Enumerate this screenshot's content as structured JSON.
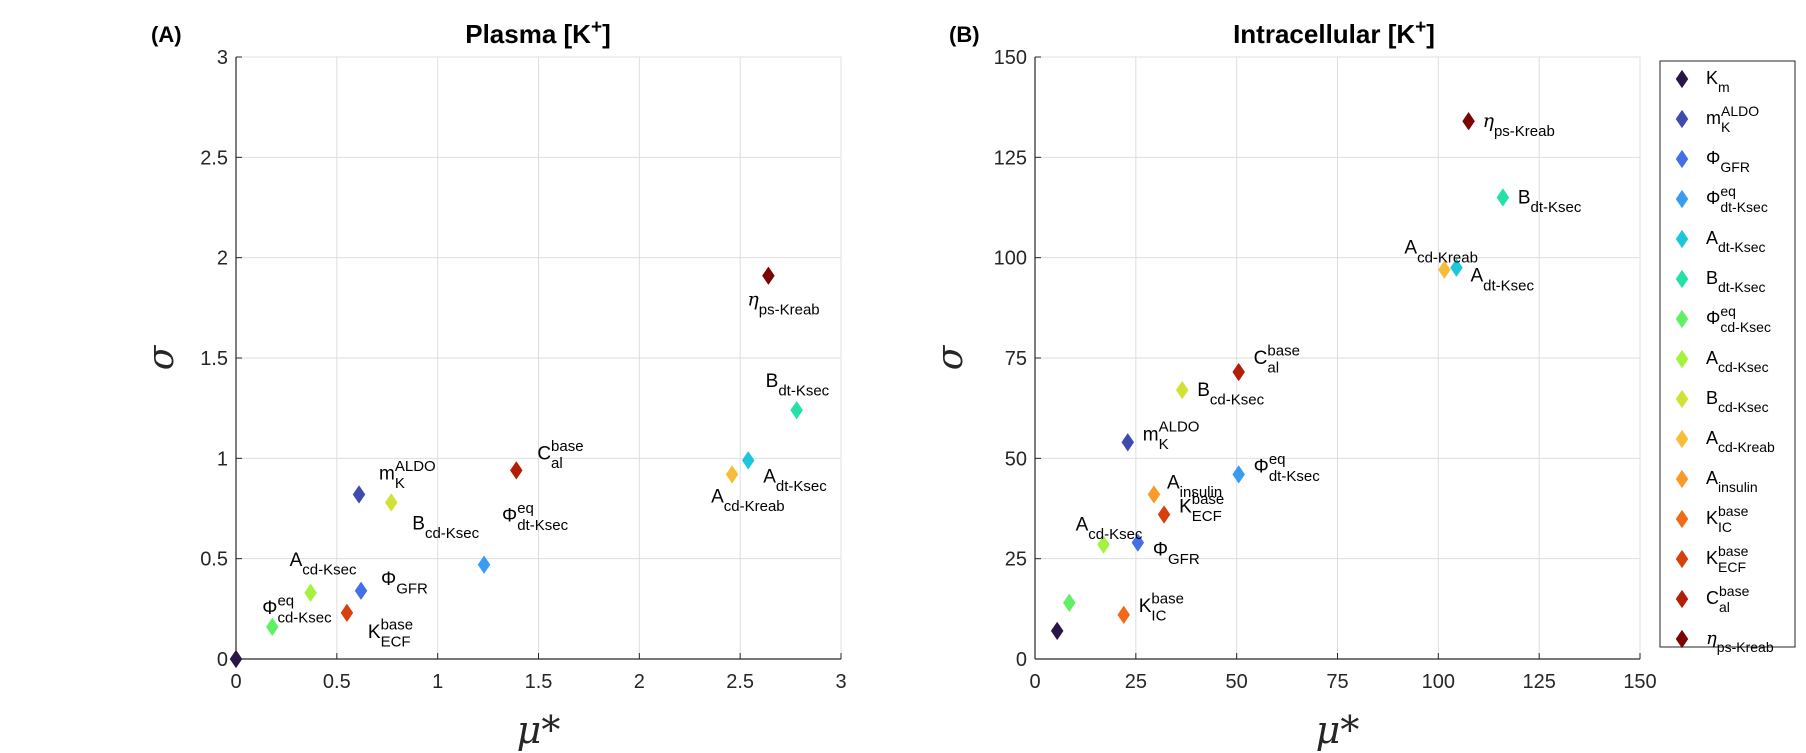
{
  "chart_data": [
    {
      "type": "scatter",
      "panel": "(A)",
      "title": "Plasma [K",
      "title_sup": "+",
      "title_end": "]",
      "xlabel": "μ*",
      "ylabel": "σ",
      "xlim": [
        0,
        3
      ],
      "ylim": [
        0,
        3
      ],
      "xticks": [
        "0",
        "0.5",
        "1",
        "1.5",
        "2",
        "2.5",
        "3"
      ],
      "yticks": [
        "0",
        "0.5",
        "1",
        "1.5",
        "2",
        "2.5",
        "3"
      ],
      "grid": true,
      "points": [
        {
          "series": 0,
          "x": 0.0,
          "y": 0.0,
          "label": ""
        },
        {
          "series": 1,
          "x": 0.61,
          "y": 0.82,
          "label": "m",
          "sub": "K",
          "sup": "ALDO"
        },
        {
          "series": 2,
          "x": 0.62,
          "y": 0.34,
          "label": "Φ",
          "sub": "GFR"
        },
        {
          "series": 3,
          "x": 1.23,
          "y": 0.47,
          "label": "Φ",
          "sub": "dt-Ksec",
          "sup": "eq"
        },
        {
          "series": 4,
          "x": 2.54,
          "y": 0.99,
          "label": "A",
          "sub": "dt-Ksec"
        },
        {
          "series": 5,
          "x": 2.78,
          "y": 1.24,
          "label": "B",
          "sub": "dt-Ksec"
        },
        {
          "series": 6,
          "x": 0.18,
          "y": 0.16,
          "label": "Φ",
          "sub": "cd-Ksec",
          "sup": "eq"
        },
        {
          "series": 7,
          "x": 0.37,
          "y": 0.33,
          "label": "A",
          "sub": "cd-Ksec"
        },
        {
          "series": 8,
          "x": 0.77,
          "y": 0.78,
          "label": "B",
          "sub": "cd-Ksec"
        },
        {
          "series": 9,
          "x": 2.46,
          "y": 0.92,
          "label": "A",
          "sub": "cd-Kreab"
        },
        {
          "series": 12,
          "x": 0.55,
          "y": 0.23,
          "label": "K",
          "sub": "ECF",
          "sup": "base"
        },
        {
          "series": 13,
          "x": 1.39,
          "y": 0.94,
          "label": "C",
          "sub": "al",
          "sup": "base"
        },
        {
          "series": 14,
          "x": 2.64,
          "y": 1.91,
          "label": "η",
          "sub": "ps-Kreab"
        }
      ]
    },
    {
      "type": "scatter",
      "panel": "(B)",
      "title": "Intracellular [K",
      "title_sup": "+",
      "title_end": "]",
      "xlabel": "μ*",
      "ylabel": "σ",
      "xlim": [
        0,
        150
      ],
      "ylim": [
        0,
        150
      ],
      "xticks": [
        "0",
        "25",
        "50",
        "75",
        "100",
        "125",
        "150"
      ],
      "yticks": [
        "0",
        "25",
        "50",
        "75",
        "100",
        "125",
        "150"
      ],
      "grid": true,
      "points": [
        {
          "series": 0,
          "x": 5.5,
          "y": 7,
          "label": ""
        },
        {
          "series": 1,
          "x": 23,
          "y": 54,
          "label": "m",
          "sub": "K",
          "sup": "ALDO"
        },
        {
          "series": 2,
          "x": 25.5,
          "y": 29,
          "label": "Φ",
          "sub": "GFR"
        },
        {
          "series": 3,
          "x": 50.5,
          "y": 46,
          "label": "Φ",
          "sub": "dt-Ksec",
          "sup": "eq"
        },
        {
          "series": 4,
          "x": 104.5,
          "y": 97.5,
          "label": "A",
          "sub": "dt-Ksec"
        },
        {
          "series": 5,
          "x": 116,
          "y": 115,
          "label": "B",
          "sub": "dt-Ksec"
        },
        {
          "series": 6,
          "x": 8.5,
          "y": 14,
          "label": ""
        },
        {
          "series": 7,
          "x": 17,
          "y": 28.5,
          "label": "A",
          "sub": "cd-Ksec"
        },
        {
          "series": 8,
          "x": 36.5,
          "y": 67,
          "label": "B",
          "sub": "cd-Ksec"
        },
        {
          "series": 9,
          "x": 101.5,
          "y": 97,
          "label": "A",
          "sub": "cd-Kreab"
        },
        {
          "series": 10,
          "x": 29.5,
          "y": 41,
          "label": "A",
          "sub": "insulin"
        },
        {
          "series": 11,
          "x": 22,
          "y": 11,
          "label": "K",
          "sub": "IC",
          "sup": "base"
        },
        {
          "series": 12,
          "x": 32,
          "y": 36,
          "label": "K",
          "sub": "ECF",
          "sup": "base"
        },
        {
          "series": 13,
          "x": 50.5,
          "y": 71.5,
          "label": "C",
          "sub": "al",
          "sup": "base"
        },
        {
          "series": 14,
          "x": 107.5,
          "y": 134,
          "label": "η",
          "sub": "ps-Kreab"
        }
      ]
    }
  ],
  "legend": {
    "placement": "right",
    "entries": [
      {
        "base": "K",
        "sub": "m",
        "sup": "",
        "color": "#2a1548"
      },
      {
        "base": "m",
        "sub": "K",
        "sup": "ALDO",
        "color": "#3e4aad"
      },
      {
        "base": "Φ",
        "sub": "GFR",
        "sup": "",
        "color": "#4370e6"
      },
      {
        "base": "Φ",
        "sub": "dt-Ksec",
        "sup": "eq",
        "color": "#3a9cf0"
      },
      {
        "base": "A",
        "sub": "dt-Ksec",
        "sup": "",
        "color": "#1ec6dc"
      },
      {
        "base": "B",
        "sub": "dt-Ksec",
        "sup": "",
        "color": "#25e0a8"
      },
      {
        "base": "Φ",
        "sub": "cd-Ksec",
        "sup": "eq",
        "color": "#60f065"
      },
      {
        "base": "A",
        "sub": "cd-Ksec",
        "sup": "",
        "color": "#a3f23d"
      },
      {
        "base": "B",
        "sub": "cd-Ksec",
        "sup": "",
        "color": "#d2e135"
      },
      {
        "base": "A",
        "sub": "cd-Kreab",
        "sup": "",
        "color": "#f5be3a"
      },
      {
        "base": "A",
        "sub": "insulin",
        "sup": "",
        "color": "#f99a2c"
      },
      {
        "base": "K",
        "sub": "IC",
        "sup": "base",
        "color": "#f06a18"
      },
      {
        "base": "K",
        "sub": "ECF",
        "sup": "base",
        "color": "#d7400d"
      },
      {
        "base": "C",
        "sub": "al",
        "sup": "base",
        "color": "#b31e06"
      },
      {
        "base": "η",
        "sub": "ps-Kreab",
        "sup": "",
        "color": "#7a0403"
      }
    ]
  }
}
